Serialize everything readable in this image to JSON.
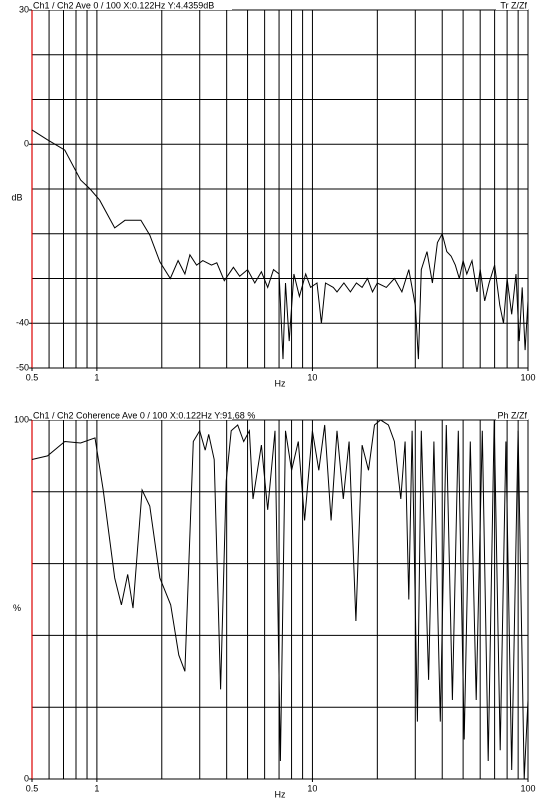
{
  "chart_data": [
    {
      "type": "line",
      "title": "Ch1 / Ch2  Ave 0 / 100  X:0.122Hz  Y:4.4359dB",
      "corner_label": "Tr Z/Zf",
      "xlabel": "Hz",
      "ylabel": "dB",
      "xscale": "log",
      "color": "#000000",
      "xlim": [
        0.5,
        100
      ],
      "xticks": [
        0.5,
        1,
        10,
        100
      ],
      "xgrid": [
        0.6,
        0.7,
        0.8,
        0.9,
        1,
        2,
        3,
        4,
        5,
        6,
        7,
        8,
        9,
        10,
        20,
        30,
        40,
        50,
        60,
        70,
        80,
        90
      ],
      "ylim": [
        -50,
        30
      ],
      "yticks": [
        -50,
        -40,
        0,
        30
      ],
      "ygrid": [
        20,
        10,
        0,
        -10,
        -20,
        -30,
        -40
      ],
      "x": [
        0.5,
        0.59,
        0.71,
        0.84,
        0.93,
        1.03,
        1.21,
        1.35,
        1.6,
        1.76,
        1.96,
        2.19,
        2.38,
        2.56,
        2.7,
        2.9,
        3.1,
        3.4,
        3.6,
        3.9,
        4.3,
        4.6,
        5.0,
        5.4,
        5.8,
        6.2,
        6.6,
        7.0,
        7.3,
        7.5,
        7.8,
        8.2,
        8.7,
        9.3,
        9.8,
        10.5,
        11,
        11.5,
        12.5,
        13,
        14,
        15,
        16,
        17,
        18,
        19,
        20,
        22,
        24,
        26,
        28,
        30,
        31,
        32,
        34,
        36,
        38,
        40,
        42,
        44,
        46,
        48,
        50,
        52,
        55,
        58,
        60,
        63,
        66,
        70,
        74,
        77,
        80,
        84,
        88,
        91,
        94,
        97,
        100
      ],
      "values": [
        3.2,
        1,
        -1.3,
        -8,
        -10,
        -12.5,
        -18.7,
        -17,
        -17,
        -20.3,
        -26.3,
        -30,
        -26,
        -29,
        -24.7,
        -27,
        -26,
        -27,
        -26.5,
        -30.5,
        -27.5,
        -29.5,
        -28,
        -31,
        -28.5,
        -32,
        -28,
        -29,
        -48,
        -31,
        -44,
        -29,
        -34,
        -29,
        -32,
        -31,
        -40,
        -31,
        -32,
        -33,
        -31,
        -33,
        -31,
        -32,
        -30,
        -33,
        -31,
        -32,
        -30,
        -33,
        -28,
        -36,
        -48,
        -28,
        -24,
        -31,
        -22,
        -20,
        -24,
        -25,
        -27,
        -30,
        -26,
        -29,
        -26,
        -33,
        -28,
        -35,
        -31,
        -27,
        -36,
        -40,
        -30,
        -38,
        -29,
        -44,
        -32,
        -46,
        -35
      ]
    },
    {
      "type": "line",
      "title": "Ch1 / Ch2  Coherence Ave 0 / 100  X:0.122Hz  Y:91.68 %",
      "corner_label": "Ph Z/Zf",
      "xlabel": "Hz",
      "ylabel": "%",
      "xscale": "log",
      "color": "#000000",
      "xlim": [
        0.5,
        100
      ],
      "xticks": [
        0.5,
        1,
        10,
        100
      ],
      "xgrid": [
        0.6,
        0.7,
        0.8,
        0.9,
        1,
        2,
        3,
        4,
        5,
        6,
        7,
        8,
        9,
        10,
        20,
        30,
        40,
        50,
        60,
        70,
        80,
        90
      ],
      "ylim": [
        0,
        100
      ],
      "yticks": [
        0,
        100
      ],
      "ygrid": [
        80,
        60,
        40,
        20
      ],
      "x": [
        0.5,
        0.59,
        0.71,
        0.84,
        0.98,
        1.07,
        1.21,
        1.3,
        1.39,
        1.47,
        1.62,
        1.76,
        1.96,
        2.2,
        2.4,
        2.56,
        2.8,
        3.0,
        3.18,
        3.3,
        3.5,
        3.75,
        3.98,
        4.2,
        4.5,
        4.8,
        5.1,
        5.3,
        5.8,
        6.2,
        6.7,
        7.1,
        7.5,
        8.0,
        8.6,
        9.2,
        10,
        10.7,
        11.4,
        12.2,
        13,
        13.9,
        14.8,
        15.9,
        17,
        18.2,
        19.4,
        20.7,
        22.5,
        24,
        25.7,
        26.9,
        28,
        29,
        30.7,
        32,
        34.6,
        36.6,
        39.2,
        41.8,
        44.6,
        47.5,
        50.6,
        54,
        57.5,
        61.4,
        65.4,
        69.7,
        74.3,
        79,
        84,
        90,
        96,
        100
      ],
      "values": [
        89,
        90,
        94,
        93.6,
        95,
        80.5,
        56,
        48.5,
        57,
        47.6,
        80.5,
        76,
        56,
        48.5,
        34.5,
        30,
        94,
        97,
        91.6,
        96,
        89,
        25,
        83,
        97,
        98.6,
        94,
        97,
        78,
        93,
        75,
        97,
        5,
        97,
        86,
        94,
        72,
        97,
        86,
        98.6,
        72,
        97,
        78,
        94,
        44,
        93,
        86,
        98.6,
        100,
        98.6,
        94,
        78,
        94,
        50,
        97,
        16,
        97,
        27.6,
        94,
        16,
        98.6,
        22,
        97,
        11,
        94,
        22,
        97,
        5,
        100,
        8,
        94,
        2.5,
        97,
        0,
        22
      ]
    }
  ]
}
